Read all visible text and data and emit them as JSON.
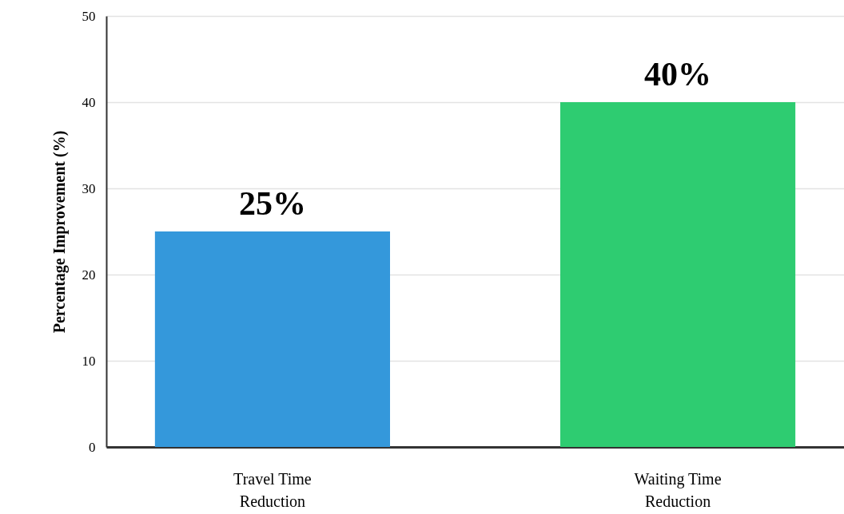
{
  "chart_data": {
    "type": "bar",
    "ylabel": "Percentage Improvement (%)",
    "categories": [
      "Travel Time Reduction",
      "Waiting Time Reduction"
    ],
    "values": [
      25,
      40
    ],
    "colors": [
      "#3498db",
      "#2ecc71"
    ],
    "value_labels": [
      "25%",
      "40%"
    ],
    "ylim": [
      0,
      50
    ],
    "yticks": [
      0,
      10,
      20,
      30,
      40,
      50
    ],
    "grid": "y"
  }
}
